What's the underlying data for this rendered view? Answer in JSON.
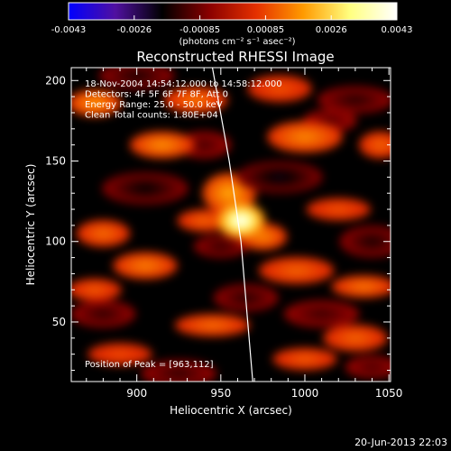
{
  "chart_data": {
    "type": "heatmap",
    "title": "Reconstructed RHESSI Image",
    "xlabel": "Heliocentric X (arcsec)",
    "ylabel": "Heliocentric Y (arcsec)",
    "xlim": [
      861,
      1051
    ],
    "ylim": [
      13,
      208
    ],
    "x_ticks": [
      900,
      950,
      1000,
      1050
    ],
    "y_ticks": [
      50,
      100,
      150,
      200
    ],
    "colorbar": {
      "range": [
        -0.0043,
        0.0043
      ],
      "ticks": [
        "-0.0043",
        "-0.0026",
        "-0.00085",
        "0.00085",
        "0.0026",
        "0.0043"
      ],
      "unit_label": "(photons cm⁻² s⁻¹ asec⁻²)",
      "colors": [
        "#0000ff",
        "#5010a0",
        "#000000",
        "#8a0000",
        "#e53000",
        "#ff9a00",
        "#ffff80",
        "#ffffff"
      ]
    },
    "annotations": [
      "18-Nov-2004 14:54:12.000 to 14:58:12.000",
      "Detectors: 4F 5F 6F 7F 8F, Att 0",
      "Energy Range: 25.0 - 50.0 keV",
      "Clean    Total counts: 1.80E+04"
    ],
    "peak": {
      "x": 963,
      "y": 112,
      "label": "Position of Peak = [963,112]"
    },
    "limb_curve": [
      [
        969,
        13
      ],
      [
        966,
        50
      ],
      [
        962,
        100
      ],
      [
        955,
        150
      ],
      [
        945,
        208
      ]
    ],
    "blobs": [
      {
        "x": 962,
        "y": 113,
        "value": 0.0043,
        "sx": 9,
        "sy": 8
      },
      {
        "x": 955,
        "y": 130,
        "value": 0.002,
        "sx": 10,
        "sy": 9
      },
      {
        "x": 975,
        "y": 103,
        "value": 0.0016,
        "sx": 9,
        "sy": 6
      },
      {
        "x": 940,
        "y": 113,
        "value": 0.0012,
        "sx": 10,
        "sy": 5
      },
      {
        "x": 875,
        "y": 186,
        "value": 0.0018,
        "sx": 10,
        "sy": 6
      },
      {
        "x": 935,
        "y": 188,
        "value": 0.0014,
        "sx": 12,
        "sy": 6
      },
      {
        "x": 1000,
        "y": 165,
        "value": 0.0016,
        "sx": 14,
        "sy": 7
      },
      {
        "x": 915,
        "y": 160,
        "value": 0.0017,
        "sx": 12,
        "sy": 6
      },
      {
        "x": 1045,
        "y": 160,
        "value": 0.0012,
        "sx": 8,
        "sy": 6
      },
      {
        "x": 880,
        "y": 105,
        "value": 0.0013,
        "sx": 10,
        "sy": 6
      },
      {
        "x": 905,
        "y": 85,
        "value": 0.0015,
        "sx": 12,
        "sy": 6
      },
      {
        "x": 995,
        "y": 82,
        "value": 0.0012,
        "sx": 14,
        "sy": 6
      },
      {
        "x": 1035,
        "y": 72,
        "value": 0.0014,
        "sx": 12,
        "sy": 5
      },
      {
        "x": 875,
        "y": 70,
        "value": 0.0011,
        "sx": 10,
        "sy": 5
      },
      {
        "x": 945,
        "y": 48,
        "value": 0.0013,
        "sx": 14,
        "sy": 5
      },
      {
        "x": 1030,
        "y": 40,
        "value": 0.0012,
        "sx": 12,
        "sy": 6
      },
      {
        "x": 1000,
        "y": 27,
        "value": 0.0011,
        "sx": 12,
        "sy": 5
      },
      {
        "x": 890,
        "y": 30,
        "value": 0.0009,
        "sx": 12,
        "sy": 5
      },
      {
        "x": 985,
        "y": 195,
        "value": 0.001,
        "sx": 12,
        "sy": 6
      },
      {
        "x": 1020,
        "y": 120,
        "value": 0.001,
        "sx": 12,
        "sy": 5
      },
      {
        "x": 905,
        "y": 133,
        "value": -0.0018,
        "sx": 16,
        "sy": 7
      },
      {
        "x": 985,
        "y": 140,
        "value": -0.002,
        "sx": 16,
        "sy": 7
      },
      {
        "x": 1040,
        "y": 100,
        "value": -0.0016,
        "sx": 12,
        "sy": 7
      },
      {
        "x": 900,
        "y": 203,
        "value": -0.0016,
        "sx": 14,
        "sy": 6
      },
      {
        "x": 1030,
        "y": 188,
        "value": -0.0015,
        "sx": 14,
        "sy": 6
      },
      {
        "x": 950,
        "y": 97,
        "value": -0.0014,
        "sx": 10,
        "sy": 5
      },
      {
        "x": 880,
        "y": 55,
        "value": -0.0014,
        "sx": 12,
        "sy": 6
      },
      {
        "x": 965,
        "y": 65,
        "value": -0.0015,
        "sx": 12,
        "sy": 6
      },
      {
        "x": 1010,
        "y": 55,
        "value": -0.0013,
        "sx": 14,
        "sy": 6
      },
      {
        "x": 925,
        "y": 18,
        "value": -0.0014,
        "sx": 14,
        "sy": 6
      },
      {
        "x": 1040,
        "y": 22,
        "value": -0.0012,
        "sx": 10,
        "sy": 5
      },
      {
        "x": 940,
        "y": 160,
        "value": -0.0012,
        "sx": 10,
        "sy": 6
      },
      {
        "x": 1015,
        "y": 175,
        "value": -0.0011,
        "sx": 10,
        "sy": 5
      }
    ]
  },
  "footer": {
    "timestamp": "20-Jun-2013 22:03"
  }
}
